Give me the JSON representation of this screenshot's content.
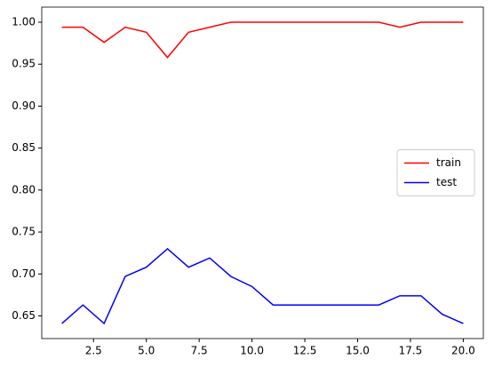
{
  "chart_data": {
    "type": "line",
    "x": [
      1,
      2,
      3,
      4,
      5,
      6,
      7,
      8,
      9,
      10,
      11,
      12,
      13,
      14,
      15,
      16,
      17,
      18,
      19,
      20
    ],
    "series": [
      {
        "name": "train",
        "color": "#ff0000",
        "values": [
          0.994,
          0.994,
          0.976,
          0.994,
          0.988,
          0.958,
          0.988,
          0.994,
          1.0,
          1.0,
          1.0,
          1.0,
          1.0,
          1.0,
          1.0,
          1.0,
          0.994,
          1.0,
          1.0,
          1.0
        ]
      },
      {
        "name": "test",
        "color": "#0000ff",
        "values": [
          0.641,
          0.663,
          0.641,
          0.697,
          0.708,
          0.73,
          0.708,
          0.719,
          0.697,
          0.685,
          0.663,
          0.663,
          0.663,
          0.663,
          0.663,
          0.663,
          0.674,
          0.674,
          0.652,
          0.641
        ]
      }
    ],
    "xlim": [
      0.05,
      20.95
    ],
    "xticks": [
      {
        "value": 2.5,
        "label": "2.5"
      },
      {
        "value": 5,
        "label": "5.0"
      },
      {
        "value": 7.5,
        "label": "7.5"
      },
      {
        "value": 10,
        "label": "10.0"
      },
      {
        "value": 12.5,
        "label": "12.5"
      },
      {
        "value": 15,
        "label": "15.0"
      },
      {
        "value": 17.5,
        "label": "17.5"
      },
      {
        "value": 20,
        "label": "20.0"
      }
    ],
    "ylim": [
      0.623,
      1.018
    ],
    "yticks": [
      0.65,
      {
        "value": 0.7,
        "label": "0.70"
      },
      0.75,
      {
        "value": 0.8,
        "label": "0.80"
      },
      0.85,
      {
        "value": 0.9,
        "label": "0.90"
      },
      0.95,
      {
        "value": 1.0,
        "label": "1.00"
      }
    ],
    "legend": "center right"
  }
}
